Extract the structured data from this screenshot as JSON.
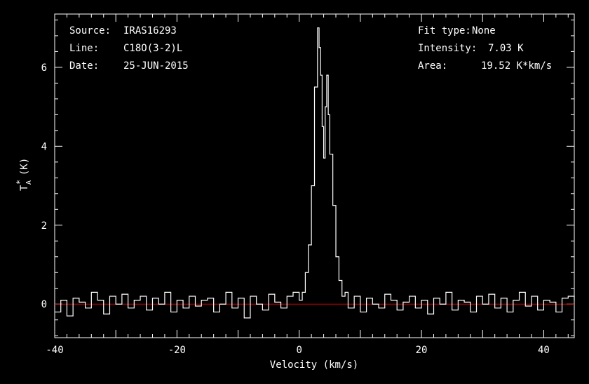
{
  "info": {
    "source_label": "Source:",
    "source_value": "IRAS16293",
    "line_label": "Line:",
    "line_value": "C18O(3-2)L",
    "date_label": "Date:",
    "date_value": "25-JUN-2015",
    "fit_label": "Fit type:",
    "fit_value": "None",
    "intensity_label": "Intensity:",
    "intensity_value": "7.03 K",
    "area_label": "Area:",
    "area_value": "19.52 K*km/s"
  },
  "chart_data": {
    "type": "line",
    "xlabel": "Velocity (km/s)",
    "ylabel_main": "T",
    "ylabel_sub": "A",
    "ylabel_sup": "*",
    "ylabel_unit": "(K)",
    "xlim": [
      -40,
      45
    ],
    "ylim": [
      -0.85,
      7.35
    ],
    "x_ticks": [
      -40,
      -20,
      0,
      20,
      40
    ],
    "x_tick_labels": [
      "-40",
      "-20",
      "0",
      "20",
      "40"
    ],
    "y_ticks": [
      0,
      2,
      4,
      6
    ],
    "y_tick_labels": [
      "0",
      "2",
      "4",
      "6"
    ],
    "baseline_y": 0,
    "colors": {
      "spectrum": "#ffffff",
      "baseline": "#cc0000",
      "axes": "#ffffff"
    },
    "series": [
      {
        "x": [
          -40,
          -39,
          -38,
          -37,
          -36,
          -35,
          -34,
          -33,
          -32,
          -31,
          -30,
          -29,
          -28,
          -27,
          -26,
          -25,
          -24,
          -23,
          -22,
          -21,
          -20,
          -19,
          -18,
          -17,
          -16,
          -15,
          -14,
          -13,
          -12,
          -11,
          -10,
          -9,
          -8,
          -7,
          -6,
          -5,
          -4,
          -3,
          -2,
          -1,
          0,
          0.5,
          1,
          1.5,
          2,
          2.5,
          3,
          3.25,
          3.5,
          3.75,
          4,
          4.25,
          4.5,
          4.75,
          5,
          5.5,
          6,
          6.5,
          7,
          7.5,
          8,
          9,
          10,
          11,
          12,
          13,
          14,
          15,
          16,
          17,
          18,
          19,
          20,
          21,
          22,
          23,
          24,
          25,
          26,
          27,
          28,
          29,
          30,
          31,
          32,
          33,
          34,
          35,
          36,
          37,
          38,
          39,
          40,
          41,
          42,
          43,
          44,
          45
        ],
        "y": [
          -0.2,
          0.1,
          -0.3,
          0.15,
          0.05,
          -0.1,
          0.3,
          0.1,
          -0.25,
          0.2,
          0.0,
          0.25,
          -0.1,
          0.1,
          0.2,
          -0.15,
          0.15,
          0.0,
          0.3,
          -0.2,
          0.1,
          -0.1,
          0.2,
          -0.05,
          0.1,
          0.15,
          -0.2,
          0.0,
          0.3,
          -0.1,
          0.15,
          -0.35,
          0.2,
          0.0,
          -0.15,
          0.25,
          0.05,
          -0.1,
          0.2,
          0.3,
          0.1,
          0.3,
          0.8,
          1.5,
          3.0,
          5.5,
          7.0,
          6.5,
          5.8,
          4.5,
          3.7,
          5.0,
          5.8,
          4.8,
          3.8,
          2.5,
          1.2,
          0.6,
          0.2,
          0.3,
          -0.1,
          0.2,
          -0.2,
          0.15,
          0.0,
          -0.1,
          0.25,
          0.1,
          -0.15,
          0.05,
          0.2,
          -0.1,
          0.1,
          -0.25,
          0.15,
          0.0,
          0.3,
          -0.15,
          0.1,
          0.05,
          -0.2,
          0.2,
          0.0,
          0.25,
          -0.1,
          0.15,
          -0.2,
          0.1,
          0.3,
          -0.05,
          0.2,
          -0.15,
          0.1,
          0.05,
          -0.2,
          0.15,
          0.2,
          0.1
        ]
      }
    ]
  }
}
